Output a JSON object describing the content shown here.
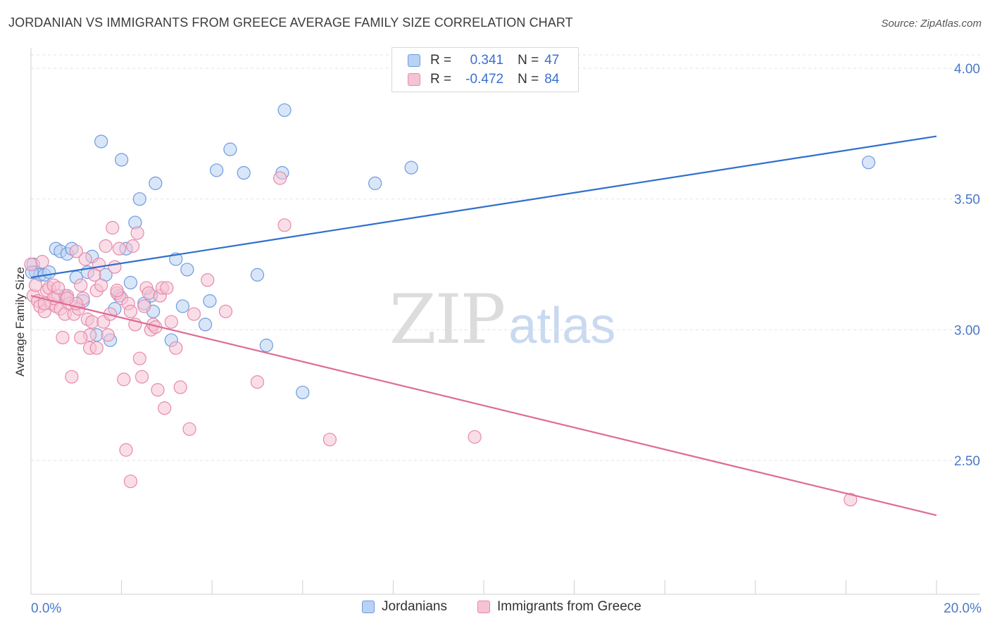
{
  "title": "JORDANIAN VS IMMIGRANTS FROM GREECE AVERAGE FAMILY SIZE CORRELATION CHART",
  "source": "Source: ZipAtlas.com",
  "watermark": {
    "zip": "ZIP",
    "atlas": "atlas"
  },
  "legend": {
    "rows": [
      {
        "r_label": "R =",
        "r_value": "0.341",
        "n_label": "N =",
        "n_value": "47"
      },
      {
        "r_label": "R =",
        "r_value": "-0.472",
        "n_label": "N =",
        "n_value": "84"
      }
    ]
  },
  "bottom_legend": [
    "Jordanians",
    "Immigrants from Greece"
  ],
  "colors": {
    "blue_fill": "#b9d1f3",
    "blue_stroke": "#6e9be0",
    "blue_line": "#2f6fcc",
    "pink_fill": "#f6c3d4",
    "pink_stroke": "#e68aab",
    "pink_line": "#e06a97",
    "tick_text": "#4a78c8"
  },
  "chart_data": {
    "type": "scatter",
    "ylabel": "Average Family Size",
    "xlim": [
      0,
      20
    ],
    "ylim": [
      2.1,
      4.08
    ],
    "x_tick_labels": [
      "0.0%",
      "20.0%"
    ],
    "y_ticks": [
      {
        "value": 2.5,
        "label": "2.50"
      },
      {
        "value": 3.0,
        "label": "3.00"
      },
      {
        "value": 3.5,
        "label": "3.50"
      },
      {
        "value": 4.0,
        "label": "4.00"
      }
    ],
    "grid": true,
    "series": [
      {
        "name": "Jordanians",
        "color": "blue",
        "trend": {
          "x": [
            0,
            20
          ],
          "y": [
            3.2,
            3.74
          ]
        },
        "points": [
          [
            0.05,
            3.25
          ],
          [
            0.1,
            3.22
          ],
          [
            0.2,
            3.21
          ],
          [
            0.3,
            3.21
          ],
          [
            0.4,
            3.22
          ],
          [
            0.55,
            3.31
          ],
          [
            0.65,
            3.3
          ],
          [
            0.75,
            3.13
          ],
          [
            0.8,
            3.29
          ],
          [
            0.9,
            3.31
          ],
          [
            1.0,
            3.2
          ],
          [
            1.15,
            3.11
          ],
          [
            1.25,
            3.22
          ],
          [
            1.35,
            3.28
          ],
          [
            1.45,
            2.98
          ],
          [
            1.55,
            3.72
          ],
          [
            1.65,
            3.21
          ],
          [
            1.75,
            2.96
          ],
          [
            1.85,
            3.08
          ],
          [
            1.95,
            3.13
          ],
          [
            2.0,
            3.65
          ],
          [
            2.1,
            3.31
          ],
          [
            2.2,
            3.18
          ],
          [
            2.3,
            3.41
          ],
          [
            2.4,
            3.5
          ],
          [
            2.5,
            3.1
          ],
          [
            2.65,
            3.13
          ],
          [
            2.7,
            3.07
          ],
          [
            2.75,
            3.56
          ],
          [
            3.1,
            2.96
          ],
          [
            3.2,
            3.27
          ],
          [
            3.35,
            3.09
          ],
          [
            3.45,
            3.23
          ],
          [
            3.85,
            3.02
          ],
          [
            3.95,
            3.11
          ],
          [
            4.1,
            3.61
          ],
          [
            4.4,
            3.69
          ],
          [
            4.7,
            3.6
          ],
          [
            5.0,
            3.21
          ],
          [
            5.2,
            2.94
          ],
          [
            5.55,
            3.6
          ],
          [
            5.6,
            3.84
          ],
          [
            6.0,
            2.76
          ],
          [
            7.6,
            3.56
          ],
          [
            8.4,
            3.62
          ],
          [
            18.5,
            3.64
          ],
          [
            0.02,
            3.22
          ]
        ]
      },
      {
        "name": "Immigrants from Greece",
        "color": "pink",
        "trend": {
          "x": [
            0,
            20
          ],
          "y": [
            3.13,
            2.29
          ]
        },
        "points": [
          [
            0.0,
            3.25
          ],
          [
            0.05,
            3.13
          ],
          [
            0.1,
            3.17
          ],
          [
            0.15,
            3.11
          ],
          [
            0.2,
            3.09
          ],
          [
            0.25,
            3.26
          ],
          [
            0.3,
            3.07
          ],
          [
            0.35,
            3.15
          ],
          [
            0.4,
            3.16
          ],
          [
            0.45,
            3.1
          ],
          [
            0.5,
            3.17
          ],
          [
            0.55,
            3.09
          ],
          [
            0.6,
            3.13
          ],
          [
            0.65,
            3.08
          ],
          [
            0.7,
            2.97
          ],
          [
            0.75,
            3.06
          ],
          [
            0.8,
            3.13
          ],
          [
            0.85,
            3.1
          ],
          [
            0.9,
            2.82
          ],
          [
            0.95,
            3.06
          ],
          [
            1.0,
            3.3
          ],
          [
            1.05,
            3.08
          ],
          [
            1.1,
            3.17
          ],
          [
            1.15,
            3.12
          ],
          [
            1.2,
            3.27
          ],
          [
            1.25,
            3.04
          ],
          [
            1.3,
            2.98
          ],
          [
            1.35,
            3.03
          ],
          [
            1.4,
            3.21
          ],
          [
            1.45,
            3.15
          ],
          [
            1.5,
            3.25
          ],
          [
            1.55,
            3.17
          ],
          [
            1.6,
            3.03
          ],
          [
            1.65,
            3.32
          ],
          [
            1.7,
            2.98
          ],
          [
            1.75,
            3.06
          ],
          [
            1.8,
            3.39
          ],
          [
            1.85,
            3.24
          ],
          [
            1.9,
            3.14
          ],
          [
            1.95,
            3.31
          ],
          [
            2.0,
            3.12
          ],
          [
            2.05,
            2.81
          ],
          [
            2.1,
            2.54
          ],
          [
            2.15,
            3.1
          ],
          [
            2.2,
            2.42
          ],
          [
            2.25,
            3.32
          ],
          [
            2.3,
            3.02
          ],
          [
            2.35,
            3.37
          ],
          [
            2.4,
            2.89
          ],
          [
            2.45,
            2.82
          ],
          [
            2.5,
            3.09
          ],
          [
            2.55,
            3.16
          ],
          [
            2.6,
            3.14
          ],
          [
            2.65,
            3.0
          ],
          [
            2.7,
            3.02
          ],
          [
            2.75,
            3.01
          ],
          [
            2.8,
            2.77
          ],
          [
            2.85,
            3.13
          ],
          [
            2.9,
            3.16
          ],
          [
            2.95,
            2.7
          ],
          [
            3.0,
            3.16
          ],
          [
            3.1,
            3.03
          ],
          [
            3.2,
            2.93
          ],
          [
            3.3,
            2.78
          ],
          [
            3.5,
            2.62
          ],
          [
            3.6,
            3.06
          ],
          [
            3.9,
            3.19
          ],
          [
            4.3,
            3.07
          ],
          [
            5.0,
            2.8
          ],
          [
            5.5,
            3.58
          ],
          [
            5.6,
            3.4
          ],
          [
            6.6,
            2.58
          ],
          [
            9.8,
            2.59
          ],
          [
            18.1,
            2.35
          ],
          [
            1.0,
            3.1
          ],
          [
            1.3,
            2.93
          ],
          [
            1.45,
            2.93
          ],
          [
            0.5,
            3.12
          ],
          [
            0.8,
            3.12
          ],
          [
            1.1,
            2.97
          ],
          [
            1.9,
            3.15
          ],
          [
            2.2,
            3.07
          ],
          [
            0.3,
            3.1
          ],
          [
            0.6,
            3.16
          ]
        ]
      }
    ]
  }
}
